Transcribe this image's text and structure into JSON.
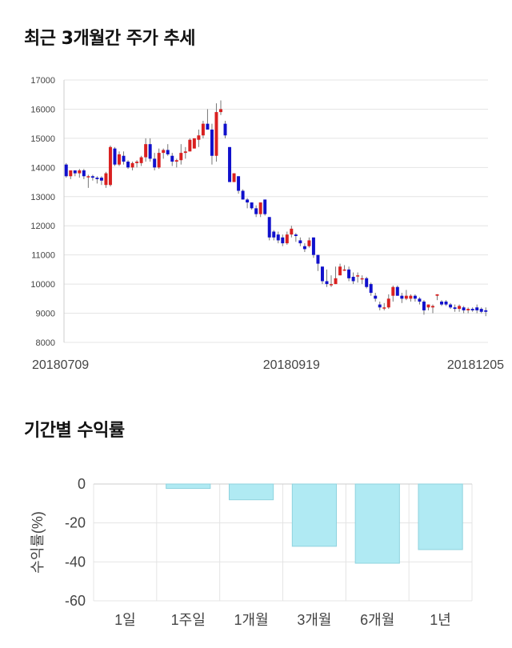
{
  "colors": {
    "up": "#d92020",
    "down": "#1010cc",
    "wick": "#777777",
    "grid": "#e4e4e4",
    "bar_fill": "#b0eaf3",
    "bar_stroke": "#8fd3de"
  },
  "price_section": {
    "title": "최근 3개월간 주가 추세"
  },
  "return_section": {
    "title": "기간별 수익률"
  },
  "chart_data": [
    {
      "type": "candlestick",
      "title": "최근 3개월간 주가 추세",
      "ylim": [
        8000,
        17000
      ],
      "y_ticks": [
        "17000",
        "16000",
        "15000",
        "14000",
        "13000",
        "12000",
        "11000",
        "10000",
        "9000",
        "8000"
      ],
      "x_ticks": [
        {
          "label": "20180709",
          "index": 0
        },
        {
          "label": "20180919",
          "index": 51
        },
        {
          "label": "20181205",
          "index": 104
        }
      ],
      "grid": true,
      "candles": [
        [
          14100,
          14150,
          13650,
          13700
        ],
        [
          13700,
          13900,
          13600,
          13900
        ],
        [
          13900,
          13900,
          13700,
          13800
        ],
        [
          13800,
          13950,
          13650,
          13900
        ],
        [
          13900,
          13950,
          13600,
          13700
        ],
        [
          13700,
          13750,
          13300,
          13700
        ],
        [
          13700,
          13750,
          13550,
          13650
        ],
        [
          13650,
          13700,
          13450,
          13600
        ],
        [
          13650,
          13700,
          13400,
          13550
        ],
        [
          13400,
          13850,
          13300,
          13800
        ],
        [
          13400,
          14750,
          13350,
          14700
        ],
        [
          14650,
          14700,
          14050,
          14100
        ],
        [
          14100,
          14550,
          14050,
          14450
        ],
        [
          14400,
          14550,
          14100,
          14200
        ],
        [
          14200,
          14250,
          13950,
          14000
        ],
        [
          14000,
          14200,
          13900,
          14150
        ],
        [
          14150,
          14250,
          14000,
          14200
        ],
        [
          14150,
          14400,
          14050,
          14350
        ],
        [
          14350,
          15000,
          14200,
          14800
        ],
        [
          14800,
          15000,
          14200,
          14300
        ],
        [
          14300,
          14500,
          13900,
          14000
        ],
        [
          14000,
          14650,
          13950,
          14500
        ],
        [
          14500,
          14650,
          14300,
          14600
        ],
        [
          14600,
          14800,
          14400,
          14450
        ],
        [
          14400,
          14500,
          14050,
          14200
        ],
        [
          14200,
          14300,
          14000,
          14250
        ],
        [
          14250,
          14800,
          14100,
          14500
        ],
        [
          14500,
          14700,
          14300,
          14550
        ],
        [
          14550,
          15000,
          14550,
          14950
        ],
        [
          14650,
          15000,
          14650,
          15000
        ],
        [
          14950,
          15300,
          14700,
          15100
        ],
        [
          15100,
          15600,
          15000,
          15500
        ],
        [
          15500,
          16000,
          15300,
          15300
        ],
        [
          15300,
          15500,
          14100,
          14400
        ],
        [
          14400,
          16200,
          14200,
          15900
        ],
        [
          15900,
          16300,
          15800,
          16000
        ],
        [
          15500,
          15600,
          15000,
          15100
        ],
        [
          14700,
          14700,
          13500,
          13500
        ],
        [
          13500,
          13800,
          13500,
          13800
        ],
        [
          13700,
          13700,
          13100,
          13200
        ],
        [
          13200,
          13250,
          12900,
          12900
        ],
        [
          12900,
          12950,
          12600,
          12800
        ],
        [
          12800,
          12800,
          12550,
          12600
        ],
        [
          12600,
          12700,
          12300,
          12400
        ],
        [
          12400,
          12800,
          12300,
          12800
        ],
        [
          12900,
          12900,
          12350,
          12400
        ],
        [
          12300,
          12300,
          11500,
          11600
        ],
        [
          11800,
          11850,
          11500,
          11600
        ],
        [
          11700,
          11800,
          11400,
          11500
        ],
        [
          11600,
          11700,
          11300,
          11400
        ],
        [
          11400,
          11800,
          11350,
          11700
        ],
        [
          11700,
          12000,
          11600,
          11900
        ],
        [
          11700,
          11750,
          11450,
          11650
        ],
        [
          11500,
          11600,
          11300,
          11400
        ],
        [
          11300,
          11400,
          11100,
          11200
        ],
        [
          11300,
          11600,
          11250,
          11500
        ],
        [
          11600,
          11600,
          10900,
          11000
        ],
        [
          11000,
          11000,
          10450,
          10700
        ],
        [
          10600,
          10600,
          10000,
          10100
        ],
        [
          10100,
          10500,
          9900,
          10000
        ],
        [
          10000,
          10300,
          9900,
          10000
        ],
        [
          10000,
          10600,
          10000,
          10200
        ],
        [
          10300,
          10700,
          10300,
          10600
        ],
        [
          10500,
          10650,
          10450,
          10500
        ],
        [
          10500,
          10600,
          10100,
          10200
        ],
        [
          10250,
          10400,
          10000,
          10100
        ],
        [
          10300,
          10400,
          10050,
          10300
        ],
        [
          10200,
          10300,
          10000,
          10200
        ],
        [
          10200,
          10250,
          9850,
          9900
        ],
        [
          10000,
          10050,
          9600,
          9700
        ],
        [
          9600,
          9700,
          9400,
          9500
        ],
        [
          9300,
          9400,
          9100,
          9200
        ],
        [
          9200,
          9350,
          9100,
          9200
        ],
        [
          9200,
          9650,
          9150,
          9500
        ],
        [
          9600,
          9950,
          9400,
          9900
        ],
        [
          9900,
          9950,
          9600,
          9600
        ],
        [
          9600,
          9700,
          9350,
          9500
        ],
        [
          9500,
          9800,
          9450,
          9600
        ],
        [
          9500,
          9650,
          9400,
          9600
        ],
        [
          9600,
          9650,
          9400,
          9500
        ],
        [
          9500,
          9550,
          9300,
          9400
        ],
        [
          9400,
          9450,
          8950,
          9100
        ],
        [
          9200,
          9300,
          9100,
          9300
        ],
        [
          9200,
          9300,
          9000,
          9250
        ],
        [
          9600,
          9650,
          9450,
          9650
        ],
        [
          9400,
          9450,
          9250,
          9300
        ],
        [
          9400,
          9450,
          9250,
          9300
        ],
        [
          9300,
          9350,
          9150,
          9200
        ],
        [
          9200,
          9300,
          9050,
          9150
        ],
        [
          9150,
          9300,
          9050,
          9250
        ],
        [
          9200,
          9250,
          9000,
          9100
        ],
        [
          9100,
          9200,
          9000,
          9150
        ],
        [
          9150,
          9200,
          9050,
          9100
        ],
        [
          9200,
          9300,
          9000,
          9100
        ],
        [
          9150,
          9200,
          9000,
          9050
        ],
        [
          9100,
          9200,
          8900,
          9050
        ]
      ]
    },
    {
      "type": "bar",
      "title": "기간별 수익률",
      "ylabel": "수익률(%)",
      "ylim": [
        -60,
        0
      ],
      "y_ticks": [
        0,
        -20,
        -40,
        -60
      ],
      "categories": [
        "1일",
        "1주일",
        "1개월",
        "3개월",
        "6개월",
        "1년"
      ],
      "values": [
        0,
        -2.3,
        -8.1,
        -32.0,
        -40.7,
        -33.7
      ],
      "grid": true
    }
  ]
}
